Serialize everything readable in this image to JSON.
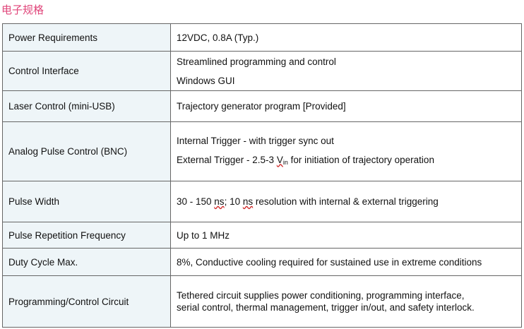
{
  "section_title": "电子规格",
  "rows": [
    {
      "label": "Power Requirements",
      "lines": [
        "12VDC, 0.8A (Typ.)"
      ]
    },
    {
      "label": "Control Interface",
      "lines": [
        "Streamlined programming and control",
        "Windows GUI"
      ]
    },
    {
      "label": "Laser Control (mini-USB)",
      "lines": [
        "Trajectory generator program [Provided]"
      ]
    },
    {
      "label": "Analog Pulse Control (BNC)",
      "lines": [
        "Internal Trigger - with trigger sync out"
      ],
      "external_trigger": {
        "before": "External Trigger - 2.5-3 ",
        "v": "V",
        "sub": "in",
        "after": " for initiation of trajectory operation"
      }
    },
    {
      "label": "Pulse Width",
      "pulse_width": {
        "before": "30 - 150 ",
        "ns1": "ns",
        "mid": "; 10 ",
        "ns2": "ns",
        "after": " resolution with internal & external triggering"
      }
    },
    {
      "label": "Pulse Repetition Frequency",
      "lines": [
        "Up to 1 MHz"
      ]
    },
    {
      "label": "Duty Cycle Max.",
      "lines": [
        "8%, Conductive cooling required for sustained use in extreme conditions"
      ]
    },
    {
      "label": "Programming/Control Circuit",
      "lines": [
        "Tethered circuit supplies power conditioning, programming interface,",
        "serial control, thermal management, trigger in/out, and safety interlock."
      ]
    }
  ]
}
